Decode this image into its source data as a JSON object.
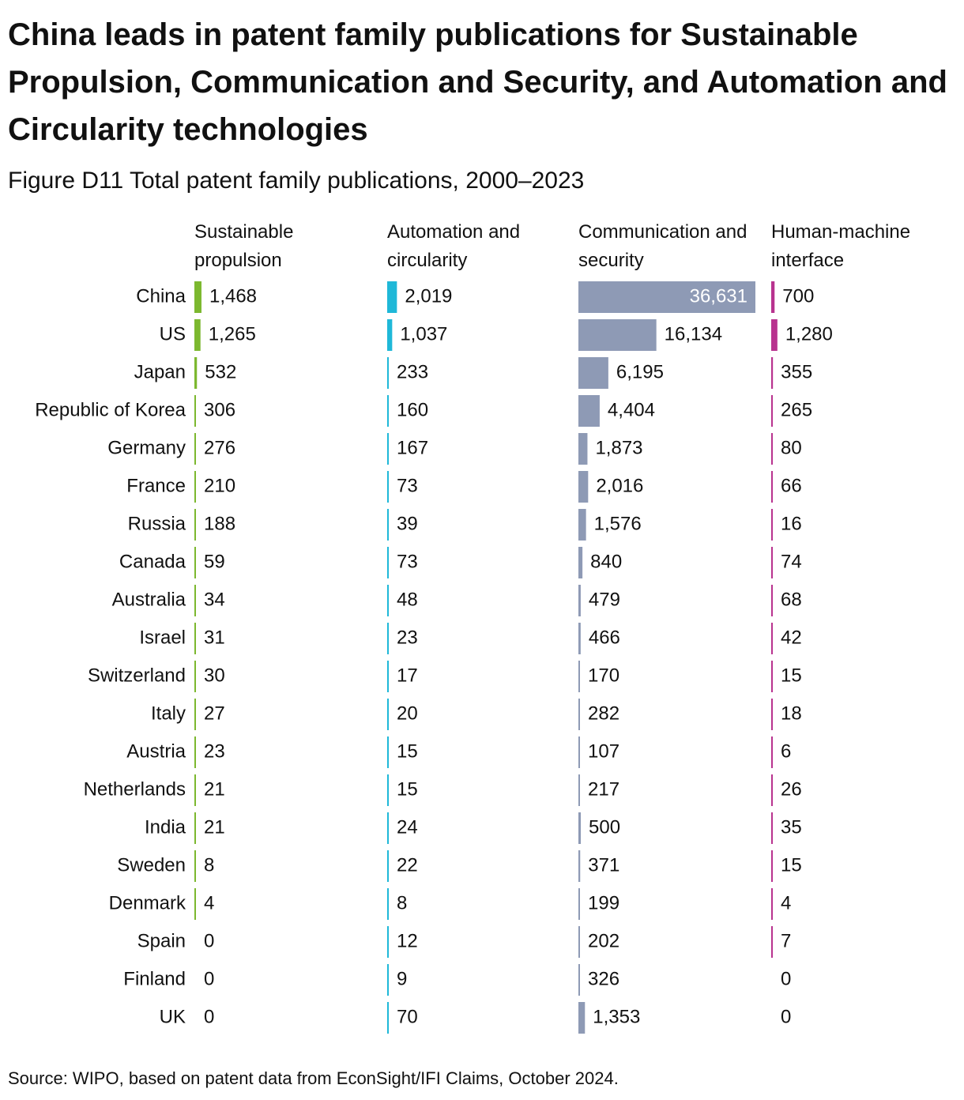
{
  "chart_data": {
    "type": "bar",
    "title": "China leads in patent family publications for Sustainable Propulsion, Communication and Security, and Automation and Circularity technologies",
    "subtitle": "Figure D11 Total patent family publications, 2000–2023",
    "source": "Source: WIPO, based on patent data from EconSight/IFI Claims, October 2024.",
    "categories": [
      "China",
      "US",
      "Japan",
      "Republic of Korea",
      "Germany",
      "France",
      "Russia",
      "Canada",
      "Australia",
      "Israel",
      "Switzerland",
      "Italy",
      "Austria",
      "Netherlands",
      "India",
      "Sweden",
      "Denmark",
      "Spain",
      "Finland",
      "UK"
    ],
    "series": [
      {
        "name": "Sustainable propulsion",
        "color": "#7cb82f",
        "values": [
          1468,
          1265,
          532,
          306,
          276,
          210,
          188,
          59,
          34,
          31,
          30,
          27,
          23,
          21,
          21,
          8,
          4,
          0,
          0,
          0
        ],
        "value_labels": [
          "1,468",
          "1,265",
          "532",
          "306",
          "276",
          "210",
          "188",
          "59",
          "34",
          "31",
          "30",
          "27",
          "23",
          "21",
          "21",
          "8",
          "4",
          "0",
          "0",
          "0"
        ]
      },
      {
        "name": "Automation and circularity",
        "color": "#1fb8d8",
        "values": [
          2019,
          1037,
          233,
          160,
          167,
          73,
          39,
          73,
          48,
          23,
          17,
          20,
          15,
          15,
          24,
          22,
          8,
          12,
          9,
          70
        ],
        "value_labels": [
          "2,019",
          "1,037",
          "233",
          "160",
          "167",
          "73",
          "39",
          "73",
          "48",
          "23",
          "17",
          "20",
          "15",
          "15",
          "24",
          "22",
          "8",
          "12",
          "9",
          "70"
        ]
      },
      {
        "name": "Communication and security",
        "color": "#8e9ab5",
        "values": [
          36631,
          16134,
          6195,
          4404,
          1873,
          2016,
          1576,
          840,
          479,
          466,
          170,
          282,
          107,
          217,
          500,
          371,
          199,
          202,
          326,
          1353
        ],
        "value_labels": [
          "36,631",
          "16,134",
          "6,195",
          "4,404",
          "1,873",
          "2,016",
          "1,576",
          "840",
          "479",
          "466",
          "170",
          "282",
          "107",
          "217",
          "500",
          "371",
          "199",
          "202",
          "326",
          "1,353"
        ]
      },
      {
        "name": "Human-machine interface",
        "color": "#b8338f",
        "values": [
          700,
          1280,
          355,
          265,
          80,
          66,
          16,
          74,
          68,
          42,
          15,
          18,
          6,
          26,
          35,
          15,
          4,
          7,
          0,
          0
        ],
        "value_labels": [
          "700",
          "1,280",
          "355",
          "265",
          "80",
          "66",
          "16",
          "74",
          "68",
          "42",
          "15",
          "18",
          "6",
          "26",
          "35",
          "15",
          "4",
          "7",
          "0",
          "0"
        ]
      }
    ]
  }
}
